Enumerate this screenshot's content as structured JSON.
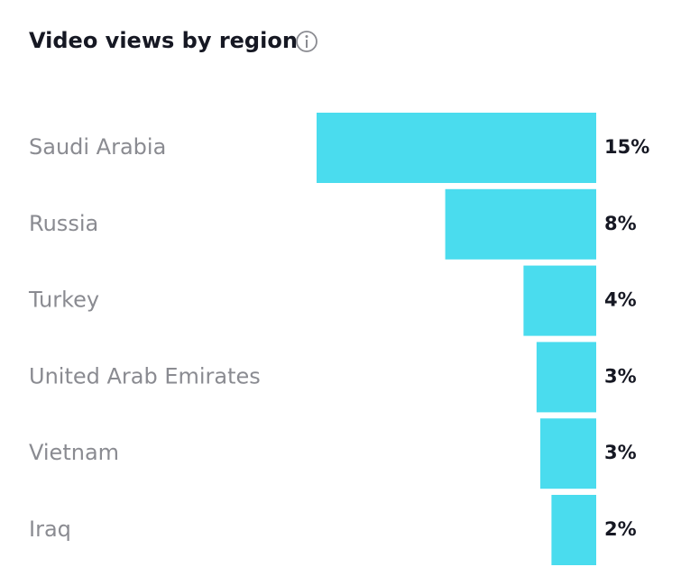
{
  "chart_data": {
    "type": "bar",
    "orientation": "horizontal",
    "title": "Video views by region",
    "categories": [
      "Saudi Arabia",
      "Russia",
      "Turkey",
      "United Arab Emirates",
      "Vietnam",
      "Iraq"
    ],
    "values": [
      15,
      8.1,
      3.9,
      3.2,
      3.0,
      2.4
    ],
    "value_labels": [
      "15%",
      "8%",
      "4%",
      "3%",
      "3%",
      "2%"
    ],
    "color": "#4adcee"
  }
}
